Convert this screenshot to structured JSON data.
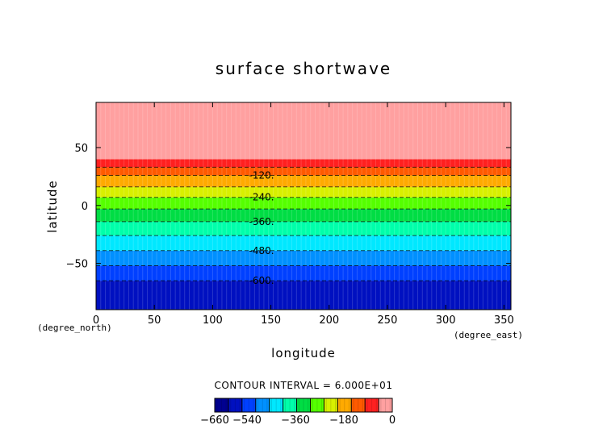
{
  "chart_data": {
    "type": "heatmap",
    "title": "surface shortwave",
    "xlabel": "longitude",
    "ylabel": "latitude",
    "x_unit": "(degree_east)",
    "y_unit": "(degree_north)",
    "xlim": [
      0,
      356
    ],
    "ylim": [
      -90,
      89
    ],
    "x_ticks": [
      0,
      50,
      100,
      150,
      200,
      250,
      300,
      350
    ],
    "y_ticks": [
      -50,
      0,
      50
    ],
    "contour_interval_text": "CONTOUR INTERVAL = 6.000E+01",
    "bands": [
      {
        "lat_min": -90,
        "lat_max": -65,
        "value": -630,
        "color": "#0010c0"
      },
      {
        "lat_min": -65,
        "lat_max": -52,
        "value": -570,
        "color": "#0040ff"
      },
      {
        "lat_min": -52,
        "lat_max": -39,
        "value": -510,
        "color": "#0090ff"
      },
      {
        "lat_min": -39,
        "lat_max": -26,
        "value": -450,
        "color": "#00e8ff"
      },
      {
        "lat_min": -26,
        "lat_max": -14,
        "value": -390,
        "color": "#00ffaa"
      },
      {
        "lat_min": -14,
        "lat_max": -3,
        "value": -330,
        "color": "#00dd44"
      },
      {
        "lat_min": -3,
        "lat_max": 7,
        "value": -270,
        "color": "#55ff00"
      },
      {
        "lat_min": 7,
        "lat_max": 16,
        "value": -210,
        "color": "#d8f000"
      },
      {
        "lat_min": 16,
        "lat_max": 26,
        "value": -150,
        "color": "#ffaa00"
      },
      {
        "lat_min": 26,
        "lat_max": 33,
        "value": -90,
        "color": "#ff5a00"
      },
      {
        "lat_min": 33,
        "lat_max": 40,
        "value": -30,
        "color": "#ff2020"
      },
      {
        "lat_min": 40,
        "lat_max": 89,
        "value": 0,
        "color": "#ffa0a0"
      }
    ],
    "contour_lines": [
      {
        "lat": 33,
        "label": ""
      },
      {
        "lat": 26,
        "label": "-120."
      },
      {
        "lat": 16,
        "label": ""
      },
      {
        "lat": 7,
        "label": "-240."
      },
      {
        "lat": -3,
        "label": ""
      },
      {
        "lat": -14,
        "label": "-360."
      },
      {
        "lat": -26,
        "label": ""
      },
      {
        "lat": -39,
        "label": "-480."
      },
      {
        "lat": -52,
        "label": ""
      },
      {
        "lat": -65,
        "label": "-600."
      }
    ],
    "colorbar": {
      "colors": [
        "#000090",
        "#0010c0",
        "#0040ff",
        "#0090ff",
        "#00e8ff",
        "#00ffaa",
        "#00dd44",
        "#55ff00",
        "#d8f000",
        "#ffaa00",
        "#ff5a00",
        "#ff2020",
        "#ffa0a0"
      ],
      "tick_values": [
        -660,
        -540,
        -360,
        -180,
        0
      ],
      "tick_labels": [
        "−660",
        "−540",
        "−360",
        "−180",
        "0"
      ],
      "min": -660,
      "max": 0
    }
  }
}
